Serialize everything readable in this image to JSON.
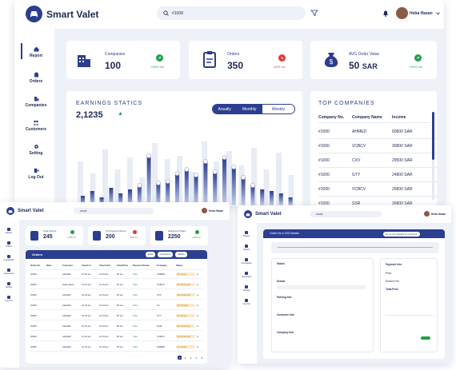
{
  "app": {
    "brand": "Smart Valet"
  },
  "header": {
    "search_value": "#1008",
    "user_name": "Heba Hasan"
  },
  "sidebar": {
    "items": [
      {
        "label": "Report",
        "icon": "home-icon",
        "active": true
      },
      {
        "label": "Orders",
        "icon": "orders-icon"
      },
      {
        "label": "Companies",
        "icon": "companies-icon"
      },
      {
        "label": "Customers",
        "icon": "customers-icon"
      },
      {
        "label": "Setting",
        "icon": "gear-icon"
      },
      {
        "label": "Log Out",
        "icon": "logout-icon"
      }
    ]
  },
  "stats": [
    {
      "title": "Companies",
      "value": "100",
      "delta": "+20% Inc",
      "trend": "up"
    },
    {
      "title": "Orders",
      "value": "350",
      "delta": "-20% Inc",
      "trend": "down"
    },
    {
      "title": "AVG Order Value",
      "value": "50",
      "unit": "SAR",
      "delta": "+20% Inc",
      "trend": "up"
    }
  ],
  "earnings": {
    "title": "EARNINGS STATICS",
    "value": "2,1235",
    "tabs": [
      "Anually",
      "Monthly",
      "Weekly"
    ],
    "active_tab": "Weekly"
  },
  "chart_data": {
    "type": "bar",
    "title": "EARNINGS STATICS",
    "series": [
      {
        "values": [
          0.55,
          0.4,
          0.7,
          0.45,
          0.6,
          0.35,
          0.78,
          0.58,
          0.62,
          0.42,
          0.8,
          0.55,
          0.68,
          0.5,
          0.72,
          0.45,
          0.66,
          0.38
        ]
      },
      {
        "values": [
          0.12,
          0.18,
          0.1,
          0.22,
          0.15,
          0.2,
          0.25,
          0.62,
          0.28,
          0.3,
          0.4,
          0.45,
          0.38,
          0.55,
          0.42,
          0.6,
          0.48,
          0.35,
          0.25,
          0.2,
          0.18,
          0.15,
          0.1
        ]
      }
    ]
  },
  "top_companies": {
    "title": "TOP COMPANIES",
    "columns": [
      "Company No.",
      "Company Name",
      "Income"
    ],
    "rows": [
      [
        "#1000",
        "AHMED",
        "60800 SAR"
      ],
      [
        "#1000",
        "VCBCV",
        "30800 SAR"
      ],
      [
        "#1000",
        "CXV",
        "29500 SAR"
      ],
      [
        "#1000",
        "GTY",
        "24800 SAR"
      ],
      [
        "#1000",
        "VCBCV",
        "26800 SAR"
      ],
      [
        "#1000",
        "SSR",
        "26800 SAR"
      ]
    ]
  },
  "orders_window": {
    "stats": [
      {
        "title": "Total Orders",
        "value": "245",
        "delta": "+20% Inc",
        "trend": "up"
      },
      {
        "title": "In Progress Orders",
        "value": "200",
        "delta": "-20% Inc",
        "trend": "down"
      },
      {
        "title": "Delivered Orders",
        "value": "2250",
        "delta": "+20% Inc",
        "trend": "up"
      }
    ],
    "table_title": "Orders",
    "filters": [
      "Date",
      "Company",
      "Status"
    ],
    "columns": [
      "Order No.",
      "Date",
      "Customer",
      "Check In",
      "Check Out",
      "Total Price",
      "Payment Status",
      "Company",
      "Status"
    ],
    "rows": [
      [
        "#1000",
        "",
        "Abdullah",
        "12:33 am",
        "12:33 am",
        "50 sar",
        "Paid",
        "AHMED",
        "On Going"
      ],
      [
        "#1000",
        "",
        "Hala Hasan",
        "12:33 am",
        "12:33 am",
        "50 sar",
        "Paid",
        "VCBCV",
        "Car Received"
      ],
      [
        "#1000",
        "",
        "Abdullah",
        "12:33 am",
        "12:33 am",
        "50 sar",
        "Paid",
        "CXV",
        "Car Delivered"
      ],
      [
        "#1000",
        "",
        "Abdullah",
        "12:33 am",
        "12:33 am",
        "50 sar",
        "Paid",
        "LS",
        "Car Parked"
      ],
      [
        "#1000",
        "",
        "Abdullah",
        "12:33 am",
        "12:33 am",
        "50 sar",
        "Paid",
        "GTY",
        "On Going"
      ],
      [
        "#1000",
        "",
        "Abdullah",
        "12:33 am",
        "12:33 am",
        "50 sar",
        "Paid",
        "SA3L",
        "Car Received"
      ],
      [
        "#1000",
        "",
        "Abdullah",
        "12:33 am",
        "12:33 am",
        "50 sar",
        "Paid",
        "VCBCV",
        "Car Delivered"
      ],
      [
        "#1000",
        "",
        "Abdullah",
        "12:33 am",
        "12:33 am",
        "50 sar",
        "Paid",
        "AHMED",
        "On Going"
      ]
    ],
    "pagination": [
      "1",
      "2",
      "3",
      "4",
      "5"
    ]
  },
  "detail_window": {
    "title": "Order No # 100 Details",
    "button_label": "Go to Car Details & Customer",
    "payment_title": "Payment Info",
    "payment_rows": [
      "Price",
      "Service Fee",
      "Total Price"
    ],
    "sections": [
      "Status",
      "Details",
      "Parking Info",
      "Customer Info",
      "Company Info"
    ]
  },
  "colors": {
    "brand": "#2c3e8f",
    "up": "#22a04b",
    "down": "#e0373a",
    "bg": "#eef2f8"
  }
}
